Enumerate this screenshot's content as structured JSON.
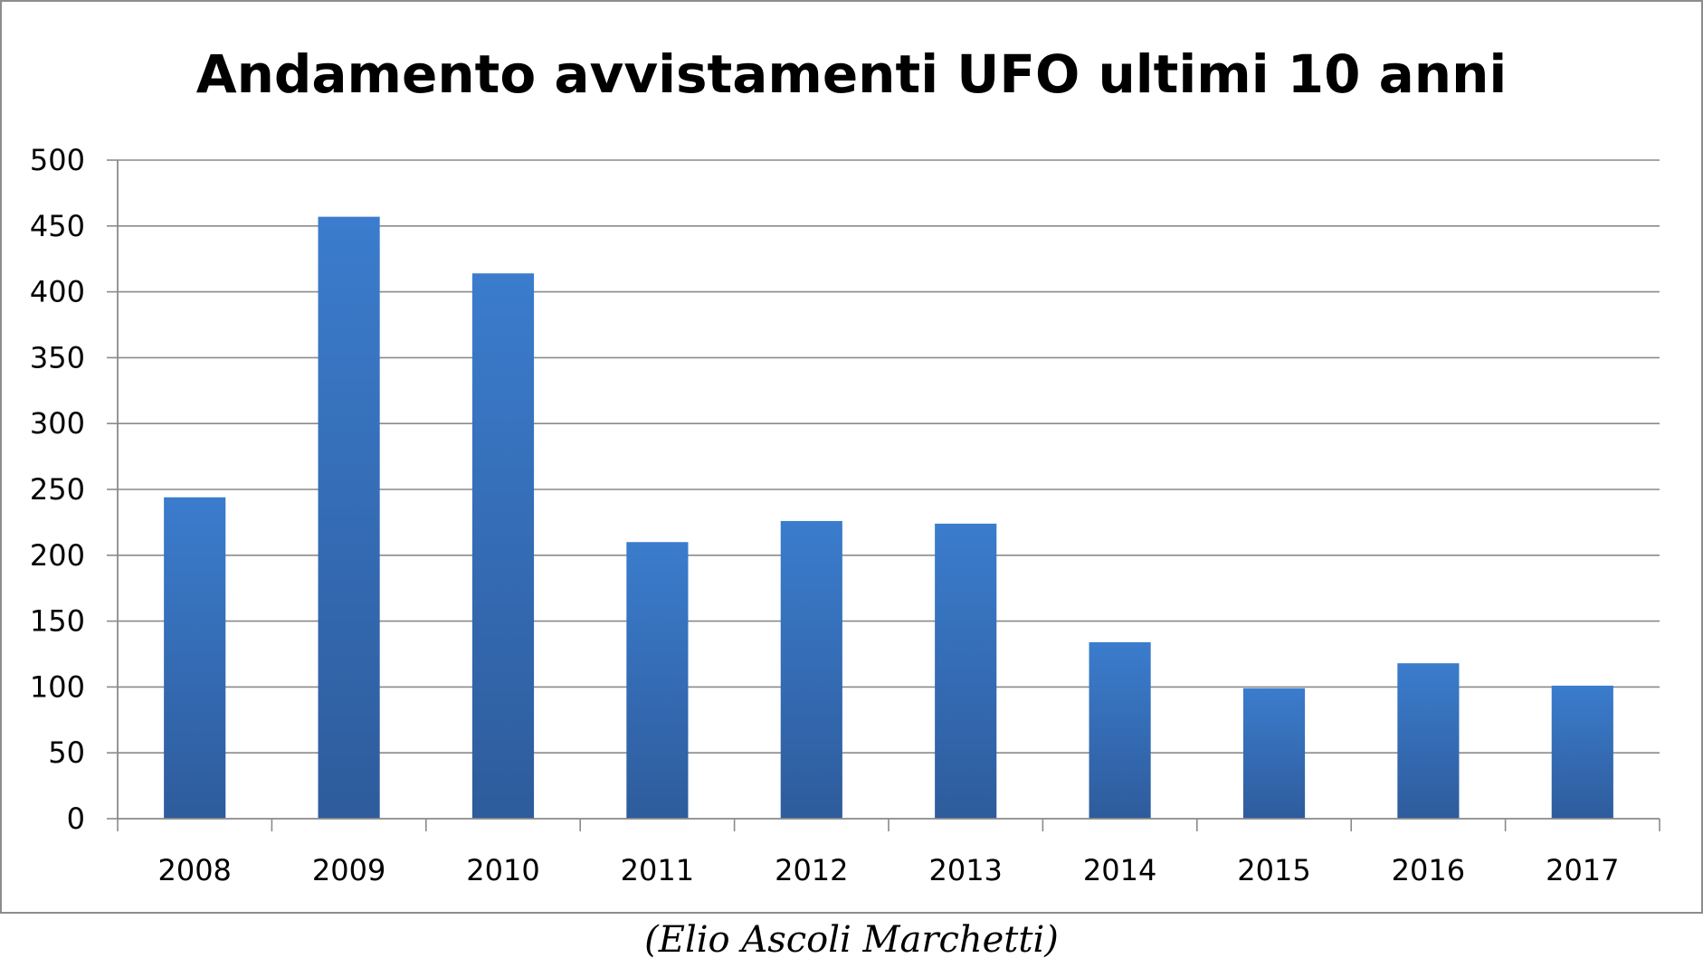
{
  "chart_data": {
    "type": "bar",
    "title": "Andamento avvistamenti UFO ultimi 10 anni",
    "categories": [
      "2008",
      "2009",
      "2010",
      "2011",
      "2012",
      "2013",
      "2014",
      "2015",
      "2016",
      "2017"
    ],
    "values": [
      244,
      457,
      414,
      210,
      226,
      224,
      134,
      99,
      118,
      101
    ],
    "ylim": [
      0,
      500
    ],
    "yticks": [
      0,
      50,
      100,
      150,
      200,
      250,
      300,
      350,
      400,
      450,
      500
    ],
    "grid": true,
    "legend": "none",
    "bar_color": "#3a70b8",
    "bar_color_dark": "#2e5c9c",
    "xlabel": "",
    "ylabel": ""
  },
  "credit": "(Elio Ascoli Marchetti)"
}
